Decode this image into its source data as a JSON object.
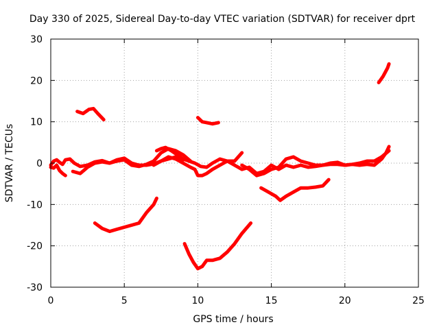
{
  "chart_data": {
    "type": "line",
    "title": "Day 330 of 2025, Sidereal Day-to-day VTEC variation (SDTVAR) for receiver dprt",
    "xlabel": "GPS time / hours",
    "ylabel": "SDTVAR / TECUs",
    "xlim": [
      0,
      25
    ],
    "ylim": [
      -30,
      30
    ],
    "xticks": [
      0,
      5,
      10,
      15,
      20,
      25
    ],
    "yticks": [
      -30,
      -20,
      -10,
      0,
      10,
      20,
      30
    ],
    "xtick_labels": [
      "0",
      "5",
      "10",
      "15",
      "20",
      "25"
    ],
    "ytick_labels": [
      "-30",
      "-20",
      "-10",
      "0",
      "10",
      "20",
      "30"
    ],
    "grid": true,
    "legend": "none",
    "color": "#ff0000",
    "series": [
      {
        "name": "trace-1",
        "x": [
          0.0,
          0.2,
          0.4,
          0.6,
          0.8,
          1.0,
          1.3,
          1.6,
          2.0,
          2.5,
          3.0,
          3.5,
          4.0,
          4.5,
          5.0,
          5.5,
          6.0,
          6.5,
          7.0,
          7.5,
          8.0,
          8.5,
          9.0
        ],
        "y": [
          -0.5,
          0.5,
          0.8,
          0.2,
          -0.3,
          0.8,
          1.0,
          0.0,
          -0.8,
          -0.5,
          0.3,
          0.6,
          0.0,
          0.8,
          1.2,
          0.0,
          -0.5,
          -0.5,
          -0.2,
          0.5,
          1.0,
          1.5,
          0.8
        ]
      },
      {
        "name": "trace-2",
        "x": [
          0.0,
          0.2,
          0.4,
          0.6,
          0.8,
          1.0
        ],
        "y": [
          -1.0,
          -1.2,
          -0.5,
          -1.8,
          -2.5,
          -3.0
        ]
      },
      {
        "name": "trace-3",
        "x": [
          1.5,
          2.0,
          2.5,
          3.0,
          3.5,
          4.0,
          4.5,
          5.0,
          5.5,
          6.0,
          6.5,
          7.0,
          7.5,
          8.0,
          8.5,
          9.0,
          9.5
        ],
        "y": [
          -2.0,
          -2.5,
          -1.0,
          0.0,
          0.3,
          0.0,
          0.5,
          0.8,
          -0.5,
          -0.8,
          -0.3,
          0.5,
          2.5,
          3.5,
          3.0,
          2.0,
          0.5
        ]
      },
      {
        "name": "trace-4",
        "x": [
          7.2,
          7.5,
          7.8,
          8.2,
          8.6,
          9.0,
          9.4,
          9.8,
          10.2,
          10.6,
          11.0,
          11.5,
          12.0,
          12.5,
          13.0
        ],
        "y": [
          3.0,
          3.5,
          3.8,
          3.0,
          2.0,
          1.0,
          0.5,
          0.0,
          -0.8,
          -1.0,
          0.0,
          1.0,
          0.5,
          0.5,
          2.5
        ]
      },
      {
        "name": "trace-5",
        "x": [
          7.0,
          7.5,
          8.0,
          8.5,
          9.0,
          9.5,
          9.8,
          10.0,
          10.3,
          10.6,
          11.0,
          11.5,
          12.0,
          12.5,
          13.0,
          13.5,
          14.0,
          14.5
        ],
        "y": [
          -0.5,
          0.5,
          1.5,
          1.0,
          0.0,
          -1.0,
          -1.5,
          -3.0,
          -3.0,
          -2.5,
          -1.5,
          -0.5,
          0.5,
          -0.5,
          -1.5,
          -1.0,
          -2.5,
          -2.0
        ]
      },
      {
        "name": "trace-6",
        "x": [
          13.0,
          13.5,
          14.0,
          14.5,
          15.0,
          15.5,
          16.0,
          16.5,
          17.0,
          17.5,
          18.0,
          18.5,
          19.0,
          19.5,
          20.0,
          20.5,
          21.0,
          21.5,
          22.0,
          22.5,
          23.0
        ],
        "y": [
          -0.5,
          -1.5,
          -3.0,
          -2.5,
          -1.5,
          -1.0,
          1.0,
          1.5,
          0.5,
          0.0,
          -0.5,
          -0.5,
          0.0,
          0.2,
          -0.5,
          -0.3,
          0.0,
          0.5,
          0.5,
          1.5,
          3.0
        ]
      },
      {
        "name": "trace-7",
        "x": [
          14.5,
          15.0,
          15.5,
          16.0,
          16.5,
          17.0,
          17.5,
          18.0,
          18.5,
          19.0,
          19.5,
          20.0,
          20.5,
          21.0,
          21.5,
          22.0,
          22.5,
          22.8,
          23.0
        ],
        "y": [
          -2.0,
          -0.5,
          -1.5,
          -0.5,
          -1.0,
          -0.5,
          -1.0,
          -0.8,
          -0.5,
          -0.3,
          -0.3,
          -0.5,
          -0.3,
          -0.5,
          -0.3,
          -0.5,
          1.0,
          2.5,
          4.0
        ]
      },
      {
        "name": "trace-8",
        "x": [
          1.8,
          2.2,
          2.6,
          2.9,
          3.2,
          3.6
        ],
        "y": [
          12.5,
          12.0,
          13.0,
          13.2,
          12.0,
          10.5
        ]
      },
      {
        "name": "trace-9",
        "x": [
          10.0,
          10.3,
          10.6,
          11.0,
          11.4
        ],
        "y": [
          11.0,
          10.0,
          9.8,
          9.5,
          9.8
        ]
      },
      {
        "name": "trace-10",
        "x": [
          22.3,
          22.6,
          22.9,
          23.0
        ],
        "y": [
          19.5,
          21.0,
          23.0,
          24.0
        ]
      },
      {
        "name": "trace-11",
        "x": [
          3.0,
          3.5,
          4.0,
          4.5,
          5.0,
          5.5,
          6.0,
          6.5,
          7.0,
          7.2
        ],
        "y": [
          -14.5,
          -15.8,
          -16.5,
          -16.0,
          -15.5,
          -15.0,
          -14.5,
          -12.0,
          -10.0,
          -8.5
        ]
      },
      {
        "name": "trace-12",
        "x": [
          9.1,
          9.4,
          9.7,
          10.0,
          10.3,
          10.6,
          11.0,
          11.5,
          12.0,
          12.5,
          13.0,
          13.6
        ],
        "y": [
          -19.5,
          -22.0,
          -24.0,
          -25.5,
          -25.0,
          -23.5,
          -23.5,
          -23.0,
          -21.5,
          -19.5,
          -17.0,
          -14.5
        ]
      },
      {
        "name": "trace-13",
        "x": [
          14.3,
          14.8,
          15.3,
          15.6,
          16.0,
          16.5,
          17.0,
          17.5,
          18.0,
          18.5,
          18.9
        ],
        "y": [
          -6.0,
          -7.0,
          -8.0,
          -9.0,
          -8.0,
          -7.0,
          -6.0,
          -6.0,
          -5.8,
          -5.5,
          -4.0
        ]
      }
    ]
  }
}
